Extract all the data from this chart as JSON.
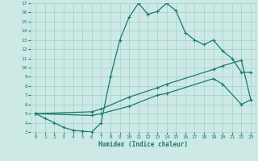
{
  "xlabel": "Humidex (Indice chaleur)",
  "xlim": [
    -0.5,
    23.5
  ],
  "ylim": [
    3,
    17
  ],
  "xticks": [
    0,
    1,
    2,
    3,
    4,
    5,
    6,
    7,
    8,
    9,
    10,
    11,
    12,
    13,
    14,
    15,
    16,
    17,
    18,
    19,
    20,
    21,
    22,
    23
  ],
  "yticks": [
    3,
    4,
    5,
    6,
    7,
    8,
    9,
    10,
    11,
    12,
    13,
    14,
    15,
    16,
    17
  ],
  "bg_color": "#cce9e5",
  "grid_color": "#aad4ce",
  "line_color": "#1a7a6e",
  "line1_x": [
    0,
    1,
    2,
    3,
    4,
    5,
    6,
    7,
    8,
    9,
    10,
    11,
    12,
    13,
    14,
    15,
    16,
    17,
    18,
    19,
    20,
    21,
    22,
    23
  ],
  "line1_y": [
    5.0,
    4.5,
    4.0,
    3.5,
    3.2,
    3.1,
    3.0,
    4.0,
    9.0,
    13.0,
    15.5,
    17.0,
    15.8,
    16.1,
    17.0,
    16.2,
    13.8,
    13.0,
    12.5,
    13.0,
    11.8,
    11.0,
    9.5,
    9.5
  ],
  "line2_x": [
    0,
    6,
    7,
    10,
    13,
    14,
    19,
    20,
    22,
    23
  ],
  "line2_y": [
    5.0,
    5.2,
    5.5,
    6.8,
    7.8,
    8.2,
    9.8,
    10.2,
    10.8,
    6.5
  ],
  "line3_x": [
    0,
    6,
    7,
    10,
    13,
    14,
    19,
    20,
    22,
    23
  ],
  "line3_y": [
    5.0,
    4.8,
    5.0,
    5.8,
    7.0,
    7.2,
    8.8,
    8.2,
    6.0,
    6.5
  ]
}
